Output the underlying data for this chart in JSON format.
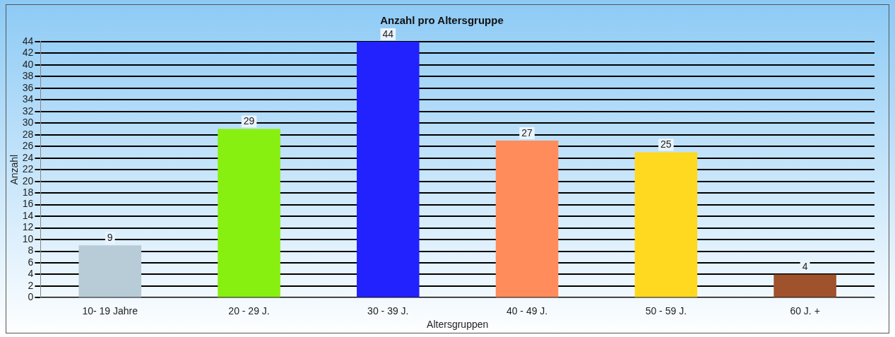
{
  "chart_data": {
    "type": "bar",
    "title": "Anzahl pro Altersgruppe",
    "xlabel": "Altersgruppen",
    "ylabel": "Anzahl",
    "categories": [
      "10- 19 Jahre",
      "20 - 29 J.",
      "30 - 39 J.",
      "40 - 49 J.",
      "50 - 59 J.",
      "60 J. +"
    ],
    "values": [
      9,
      29,
      44,
      27,
      25,
      4
    ],
    "colors": [
      "#b8ccd8",
      "#88f010",
      "#2222ff",
      "#ff8c5a",
      "#ffd820",
      "#a0522d"
    ],
    "ylim": [
      0,
      44
    ],
    "yticks": [
      0,
      2,
      4,
      6,
      8,
      10,
      12,
      14,
      16,
      18,
      20,
      22,
      24,
      26,
      28,
      30,
      32,
      34,
      36,
      38,
      40,
      42,
      44
    ],
    "grid": "y",
    "data_labels": true,
    "legend": false
  }
}
